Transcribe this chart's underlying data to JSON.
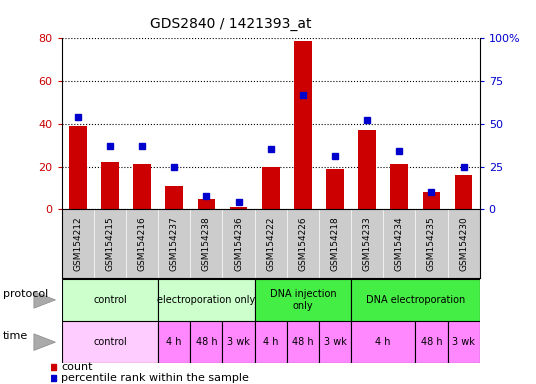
{
  "title": "GDS2840 / 1421393_at",
  "samples": [
    "GSM154212",
    "GSM154215",
    "GSM154216",
    "GSM154237",
    "GSM154238",
    "GSM154236",
    "GSM154222",
    "GSM154226",
    "GSM154218",
    "GSM154233",
    "GSM154234",
    "GSM154235",
    "GSM154230"
  ],
  "counts": [
    39,
    22,
    21,
    11,
    5,
    1,
    20,
    79,
    19,
    37,
    21,
    8,
    16
  ],
  "percentiles": [
    54,
    37,
    37,
    25,
    8,
    4,
    35,
    67,
    31,
    52,
    34,
    10,
    25
  ],
  "ylim_left": [
    0,
    80
  ],
  "ylim_right": [
    0,
    100
  ],
  "yticks_left": [
    0,
    20,
    40,
    60,
    80
  ],
  "yticks_right": [
    0,
    25,
    50,
    75,
    100
  ],
  "bar_color": "#cc0000",
  "dot_color": "#0000cc",
  "protocol_groups": [
    {
      "label": "control",
      "start": 0,
      "end": 3,
      "color": "#ccffcc"
    },
    {
      "label": "electroporation only",
      "start": 3,
      "end": 6,
      "color": "#ccffcc"
    },
    {
      "label": "DNA injection\nonly",
      "start": 6,
      "end": 9,
      "color": "#44ee44"
    },
    {
      "label": "DNA electroporation",
      "start": 9,
      "end": 13,
      "color": "#44ee44"
    }
  ],
  "time_groups": [
    {
      "label": "control",
      "start": 0,
      "end": 3,
      "color": "#ffccff"
    },
    {
      "label": "4 h",
      "start": 3,
      "end": 4,
      "color": "#ff88ff"
    },
    {
      "label": "48 h",
      "start": 4,
      "end": 5,
      "color": "#ff88ff"
    },
    {
      "label": "3 wk",
      "start": 5,
      "end": 6,
      "color": "#ff88ff"
    },
    {
      "label": "4 h",
      "start": 6,
      "end": 7,
      "color": "#ff88ff"
    },
    {
      "label": "48 h",
      "start": 7,
      "end": 8,
      "color": "#ff88ff"
    },
    {
      "label": "3 wk",
      "start": 8,
      "end": 9,
      "color": "#ff88ff"
    },
    {
      "label": "4 h",
      "start": 9,
      "end": 11,
      "color": "#ff88ff"
    },
    {
      "label": "48 h",
      "start": 11,
      "end": 12,
      "color": "#ff88ff"
    },
    {
      "label": "3 wk",
      "start": 12,
      "end": 13,
      "color": "#ff88ff"
    }
  ],
  "bg_color": "#ffffff",
  "tick_label_color_left": "#cc0000",
  "tick_label_color_right": "#0000cc",
  "grid_color": "#000000",
  "sample_bg": "#cccccc",
  "left_label_color": "#888888"
}
